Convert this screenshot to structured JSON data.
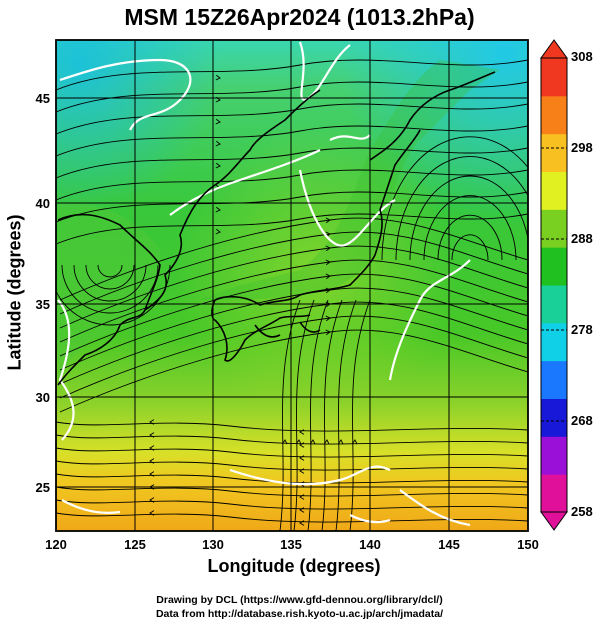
{
  "title": "MSM 15Z26Apr2024 (1013.2hPa)",
  "xlabel": "Longitude (degrees)",
  "ylabel": "Latitude  (degrees)",
  "credit_line1": "Drawing by DCL (https://www.gfd-dennou.org/library/dcl/)",
  "credit_line2": "Data from http://database.rish.kyoto-u.ac.jp/arch/jmadata/",
  "map": {
    "lon_range": [
      120,
      150
    ],
    "lat_range": [
      22.5,
      47.6
    ],
    "lon_ticks": [
      120,
      125,
      130,
      135,
      140,
      145,
      150
    ],
    "lat_ticks": [
      25,
      30,
      35,
      40,
      45
    ],
    "grid": true,
    "contour_color": "#ffffff",
    "coast_color": "#000000",
    "streamline_color": "#000000"
  },
  "colorbar": {
    "ticks": [
      258,
      268,
      278,
      288,
      298,
      308
    ],
    "range": [
      258,
      308
    ],
    "colors": [
      "#e0109a",
      "#9a10d8",
      "#1818d8",
      "#1a78ff",
      "#10d0e8",
      "#18d098",
      "#20c020",
      "#7ad020",
      "#e0f020",
      "#f8c020",
      "#f88018",
      "#f03820"
    ]
  }
}
